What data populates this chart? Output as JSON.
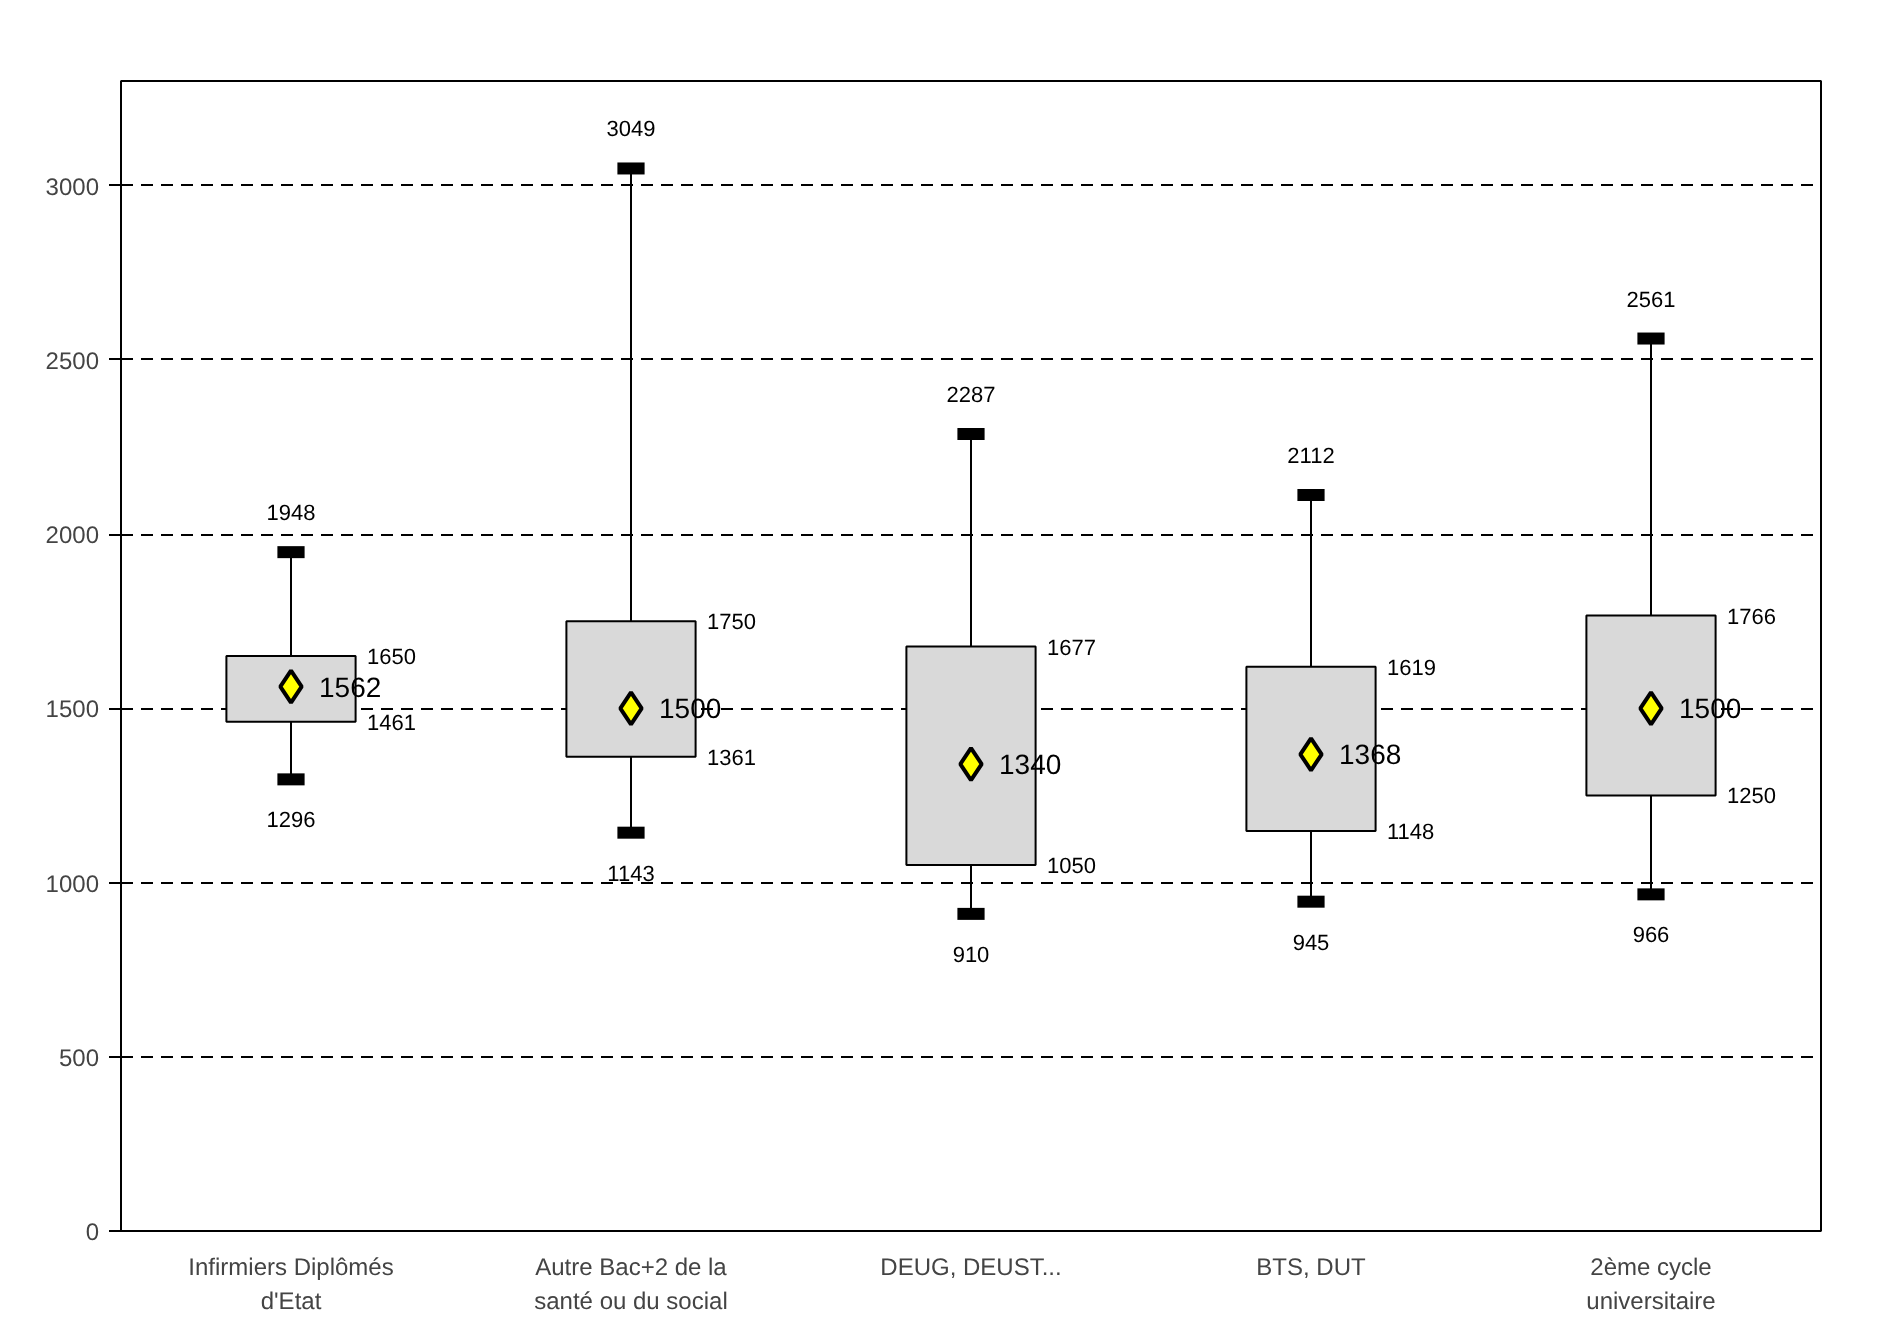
{
  "chart_data": {
    "type": "box",
    "categories": [
      "Infirmiers Diplômés d'Etat",
      "Autre Bac+2 de la santé ou du social",
      "DEUG, DEUST...",
      "BTS, DUT",
      "2ème cycle universitaire"
    ],
    "boxes": [
      {
        "low": 1296,
        "q1": 1461,
        "median": 1562,
        "q3": 1650,
        "high": 1948
      },
      {
        "low": 1143,
        "q1": 1361,
        "median": 1500,
        "q3": 1750,
        "high": 3049
      },
      {
        "low": 910,
        "q1": 1050,
        "median": 1340,
        "q3": 1677,
        "high": 2287
      },
      {
        "low": 945,
        "q1": 1148,
        "median": 1368,
        "q3": 1619,
        "high": 2112
      },
      {
        "low": 966,
        "q1": 1250,
        "median": 1500,
        "q3": 1766,
        "high": 2561
      }
    ],
    "color": "#d9d9d9",
    "ylim": [
      0,
      3300
    ],
    "yticks": [
      0,
      500,
      1000,
      1500,
      2000,
      2500,
      3000
    ],
    "grid": "y",
    "annotations": [
      {
        "text": "1948",
        "x": "Infirmiers Diplômés d'Etat",
        "y": 1948
      },
      "1650",
      {
        "text": "1562",
        "x": "Infirmiers Diplômés d'Etat",
        "y": 1562
      },
      "1461",
      {
        "text": "1296",
        "x": "Infirmiers Diplômés d'Etat",
        "y": 1296
      },
      {
        "text": "3049",
        "x": "Autre Bac+2 de la santé ou du social",
        "y": 3049
      },
      "1750",
      {
        "text": "1500",
        "x": "Autre Bac+2 de la santé ou du social",
        "y": 1500
      },
      "1361",
      {
        "text": "1143",
        "x": "Autre Bac+2 de la santé ou du social",
        "y": 1143
      },
      {
        "text": "2287",
        "x": "DEUG, DEUST...",
        "y": 2287
      },
      "1677",
      {
        "text": "1340",
        "x": "DEUG, DEUST...",
        "y": 1340
      },
      "1050",
      {
        "text": "910",
        "x": "DEUG, DEUST...",
        "y": 910
      },
      {
        "text": "2112",
        "x": "BTS, DUT",
        "y": 2112
      },
      "1619",
      {
        "text": "1368",
        "x": "BTS, DUT",
        "y": 1368
      },
      "1148",
      {
        "text": "945",
        "x": "BTS, DUT",
        "y": 945
      },
      {
        "text": "2561",
        "x": "2ème cycle universitaire",
        "y": 2561
      },
      "1766",
      {
        "text": "1500",
        "x": "2ème cycle universitaire",
        "y": 1500
      },
      "1250",
      {
        "text": "966",
        "x": "2ème cycle universitaire",
        "y": 966
      }
    ]
  }
}
